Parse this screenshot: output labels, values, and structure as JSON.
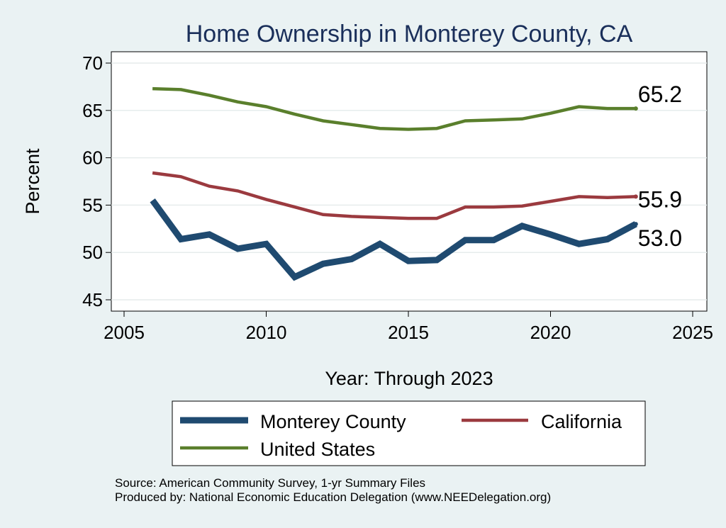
{
  "chart_data": {
    "type": "line",
    "title": "Home Ownership in Monterey County, CA",
    "xlabel": "Year: Through 2023",
    "ylabel": "Percent",
    "xlim": [
      2005,
      2025
    ],
    "ylim": [
      45,
      70
    ],
    "x_ticks": [
      2005,
      2010,
      2015,
      2020,
      2025
    ],
    "y_ticks": [
      45,
      50,
      55,
      60,
      65,
      70
    ],
    "grid": true,
    "x": [
      2006,
      2007,
      2008,
      2009,
      2010,
      2011,
      2012,
      2013,
      2014,
      2015,
      2016,
      2017,
      2018,
      2019,
      2020,
      2021,
      2022,
      2023
    ],
    "series": [
      {
        "name": "Monterey County",
        "color": "#1f4a70",
        "values": [
          55.5,
          51.4,
          51.9,
          50.4,
          50.9,
          47.4,
          48.8,
          49.3,
          50.9,
          49.1,
          49.2,
          51.3,
          51.3,
          52.8,
          51.9,
          50.9,
          51.4,
          53.0
        ],
        "end_label": "53.0"
      },
      {
        "name": "California",
        "color": "#9b3a3f",
        "values": [
          58.4,
          58.0,
          57.0,
          56.5,
          55.6,
          54.8,
          54.0,
          53.8,
          53.7,
          53.6,
          53.6,
          54.8,
          54.8,
          54.9,
          55.4,
          55.9,
          55.8,
          55.9
        ],
        "end_label": "55.9"
      },
      {
        "name": "United States",
        "color": "#5a7f2c",
        "values": [
          67.3,
          67.2,
          66.6,
          65.9,
          65.4,
          64.6,
          63.9,
          63.5,
          63.1,
          63.0,
          63.1,
          63.9,
          64.0,
          64.1,
          64.7,
          65.4,
          65.2,
          65.2
        ],
        "end_label": "65.2"
      }
    ],
    "legend": {
      "position": "bottom",
      "entries": [
        "Monterey County",
        "California",
        "United States"
      ]
    }
  },
  "source_note": {
    "line1": "Source: American Community Survey, 1-yr Summary Files",
    "line2": "Produced by: National Economic Education Delegation (www.NEEDelegation.org)"
  }
}
